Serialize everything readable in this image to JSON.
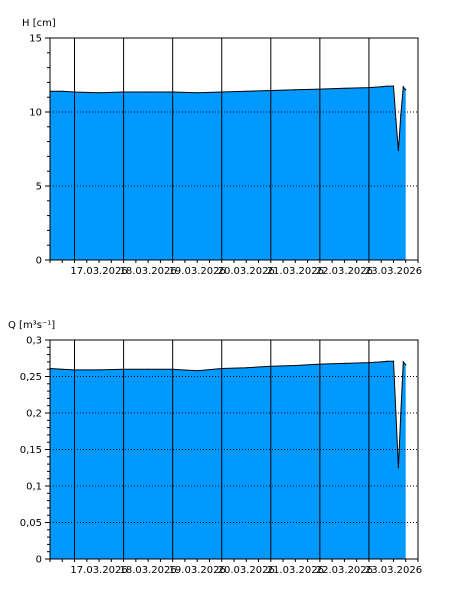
{
  "colors": {
    "fill": "#0099ff",
    "edge": "#000000",
    "grid": "#000000",
    "background": "#ffffff"
  },
  "chart_data": [
    {
      "type": "area",
      "ylabel": "H [cm]",
      "ylim": [
        0,
        15
      ],
      "yticks": [
        0,
        5,
        10,
        15
      ],
      "ytick_labels": [
        "0",
        "5",
        "10",
        "15"
      ],
      "xlim": [
        "2026-03-16 12:00",
        "2026-03-24 00:00"
      ],
      "xtick_labels": [
        "17.03.2026",
        "18.03.2026",
        "19.03.2026",
        "20.03.2026",
        "21.03.2026",
        "22.03.2026",
        "23.03.2026"
      ],
      "grid": {
        "x": "solid",
        "y": "dotted"
      },
      "x": [
        "2026-03-16 12:00",
        "2026-03-16 18:00",
        "2026-03-17 00:00",
        "2026-03-17 12:00",
        "2026-03-18 00:00",
        "2026-03-18 12:00",
        "2026-03-19 00:00",
        "2026-03-19 12:00",
        "2026-03-20 00:00",
        "2026-03-20 12:00",
        "2026-03-21 00:00",
        "2026-03-21 12:00",
        "2026-03-22 00:00",
        "2026-03-22 12:00",
        "2026-03-23 00:00",
        "2026-03-23 06:00",
        "2026-03-23 09:00",
        "2026-03-23 12:00",
        "2026-03-23 13:12",
        "2026-03-23 14:24",
        "2026-03-23 15:36",
        "2026-03-23 16:48",
        "2026-03-23 18:00"
      ],
      "values": [
        11.4,
        11.4,
        11.35,
        11.3,
        11.35,
        11.35,
        11.35,
        11.3,
        11.35,
        11.4,
        11.45,
        11.5,
        11.55,
        11.6,
        11.65,
        11.7,
        11.75,
        11.75,
        9.5,
        7.4,
        9.8,
        11.7,
        11.5
      ]
    },
    {
      "type": "area",
      "ylabel": "Q [m³s⁻¹]",
      "ylim": [
        0,
        0.3
      ],
      "yticks": [
        0,
        0.05,
        0.1,
        0.15,
        0.2,
        0.25,
        0.3
      ],
      "ytick_labels": [
        "0",
        "0,05",
        "0,1",
        "0,15",
        "0,2",
        "0,25",
        "0,3"
      ],
      "xlim": [
        "2026-03-16 12:00",
        "2026-03-24 00:00"
      ],
      "xtick_labels": [
        "17.03.2026",
        "18.03.2026",
        "19.03.2026",
        "20.03.2026",
        "21.03.2026",
        "22.03.2026",
        "23.03.2026"
      ],
      "grid": {
        "x": "solid",
        "y": "dotted"
      },
      "x": [
        "2026-03-16 12:00",
        "2026-03-16 18:00",
        "2026-03-17 00:00",
        "2026-03-17 12:00",
        "2026-03-18 00:00",
        "2026-03-18 12:00",
        "2026-03-19 00:00",
        "2026-03-19 12:00",
        "2026-03-20 00:00",
        "2026-03-20 12:00",
        "2026-03-21 00:00",
        "2026-03-21 12:00",
        "2026-03-22 00:00",
        "2026-03-22 12:00",
        "2026-03-23 00:00",
        "2026-03-23 06:00",
        "2026-03-23 09:00",
        "2026-03-23 12:00",
        "2026-03-23 13:12",
        "2026-03-23 14:24",
        "2026-03-23 15:36",
        "2026-03-23 16:48",
        "2026-03-23 18:00"
      ],
      "values": [
        0.261,
        0.26,
        0.259,
        0.259,
        0.26,
        0.26,
        0.26,
        0.258,
        0.261,
        0.262,
        0.264,
        0.265,
        0.267,
        0.268,
        0.269,
        0.27,
        0.271,
        0.271,
        0.2,
        0.125,
        0.2,
        0.27,
        0.266
      ]
    }
  ]
}
